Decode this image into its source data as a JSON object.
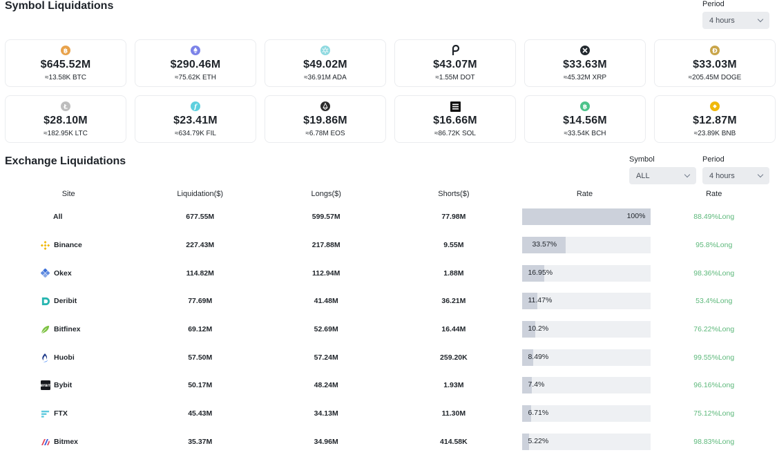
{
  "symbol_section": {
    "title": "Symbol Liquidations",
    "period": {
      "label": "Period",
      "value": "4 hours"
    }
  },
  "symbol_cards": [
    {
      "amount": "$645.52M",
      "sub": "≈13.58K BTC",
      "icon": "bitcoin-icon",
      "color": "#e8a24b"
    },
    {
      "amount": "$290.46M",
      "sub": "≈75.62K ETH",
      "icon": "ethereum-icon",
      "color": "#7c83e8"
    },
    {
      "amount": "$49.02M",
      "sub": "≈36.91M ADA",
      "icon": "cardano-icon",
      "color": "#8ed9e0"
    },
    {
      "amount": "$43.07M",
      "sub": "≈1.55M DOT",
      "icon": "polkadot-icon",
      "color": "#1e2329"
    },
    {
      "amount": "$33.63M",
      "sub": "≈45.32M XRP",
      "icon": "xrp-icon",
      "color": "#23292f"
    },
    {
      "amount": "$33.03M",
      "sub": "≈205.45M DOGE",
      "icon": "dogecoin-icon",
      "color": "#c9a54a"
    },
    {
      "amount": "$28.10M",
      "sub": "≈182.95K LTC",
      "icon": "litecoin-icon",
      "color": "#bdbdbd"
    },
    {
      "amount": "$23.41M",
      "sub": "≈634.79K FIL",
      "icon": "filecoin-icon",
      "color": "#5ed0de"
    },
    {
      "amount": "$19.86M",
      "sub": "≈6.78M EOS",
      "icon": "eos-icon",
      "color": "#2b2b2b"
    },
    {
      "amount": "$16.66M",
      "sub": "≈86.72K SOL",
      "icon": "solana-icon",
      "color": "#111111"
    },
    {
      "amount": "$14.56M",
      "sub": "≈33.54K BCH",
      "icon": "bitcoin-cash-icon",
      "color": "#4cc38a"
    },
    {
      "amount": "$12.87M",
      "sub": "≈23.89K BNB",
      "icon": "bnb-icon",
      "color": "#f0b90b"
    }
  ],
  "exchange_section": {
    "title": "Exchange Liquidations",
    "symbol_filter": {
      "label": "Symbol",
      "value": "ALL"
    },
    "period_filter": {
      "label": "Period",
      "value": "4 hours"
    }
  },
  "table": {
    "headers": [
      "Site",
      "Liquidation($)",
      "Longs($)",
      "Shorts($)",
      "Rate",
      "Rate"
    ],
    "rows": [
      {
        "site": "All",
        "icon": "",
        "color": "",
        "liq": "677.55M",
        "longs": "599.57M",
        "shorts": "77.98M",
        "rate_label": "100%",
        "rate_value": 1.0,
        "long_ratio": "88.49%Long"
      },
      {
        "site": "Binance",
        "icon": "binance-icon",
        "color": "#f0b90b",
        "liq": "227.43M",
        "longs": "217.88M",
        "shorts": "9.55M",
        "rate_label": "33.57%",
        "rate_value": 0.3357,
        "long_ratio": "95.8%Long"
      },
      {
        "site": "Okex",
        "icon": "okex-icon",
        "color": "#3a6fd8",
        "liq": "114.82M",
        "longs": "112.94M",
        "shorts": "1.88M",
        "rate_label": "16.95%",
        "rate_value": 0.1695,
        "long_ratio": "98.36%Long"
      },
      {
        "site": "Deribit",
        "icon": "deribit-icon",
        "color": "#26b5b0",
        "liq": "77.69M",
        "longs": "41.48M",
        "shorts": "36.21M",
        "rate_label": "11.47%",
        "rate_value": 0.1147,
        "long_ratio": "53.4%Long"
      },
      {
        "site": "Bitfinex",
        "icon": "bitfinex-icon",
        "color": "#7dc242",
        "liq": "69.12M",
        "longs": "52.69M",
        "shorts": "16.44M",
        "rate_label": "10.2%",
        "rate_value": 0.102,
        "long_ratio": "76.22%Long"
      },
      {
        "site": "Huobi",
        "icon": "huobi-icon",
        "color": "#1e3a8a",
        "liq": "57.50M",
        "longs": "57.24M",
        "shorts": "259.20K",
        "rate_label": "8.49%",
        "rate_value": 0.0849,
        "long_ratio": "99.55%Long"
      },
      {
        "site": "Bybit",
        "icon": "bybit-icon",
        "color": "#17181e",
        "liq": "50.17M",
        "longs": "48.24M",
        "shorts": "1.93M",
        "rate_label": "7.4%",
        "rate_value": 0.074,
        "long_ratio": "96.16%Long"
      },
      {
        "site": "FTX",
        "icon": "ftx-icon",
        "color": "#5fcade",
        "liq": "45.43M",
        "longs": "34.13M",
        "shorts": "11.30M",
        "rate_label": "6.71%",
        "rate_value": 0.0671,
        "long_ratio": "75.12%Long"
      },
      {
        "site": "Bitmex",
        "icon": "bitmex-icon",
        "color": "#e2475c",
        "liq": "35.37M",
        "longs": "34.96M",
        "shorts": "414.58K",
        "rate_label": "5.22%",
        "rate_value": 0.0522,
        "long_ratio": "98.83%Long"
      }
    ]
  },
  "colors": {
    "long_ratio": "#5cb87a",
    "bar_bg": "#eef0f3",
    "bar_fill": "#ccd1db"
  }
}
